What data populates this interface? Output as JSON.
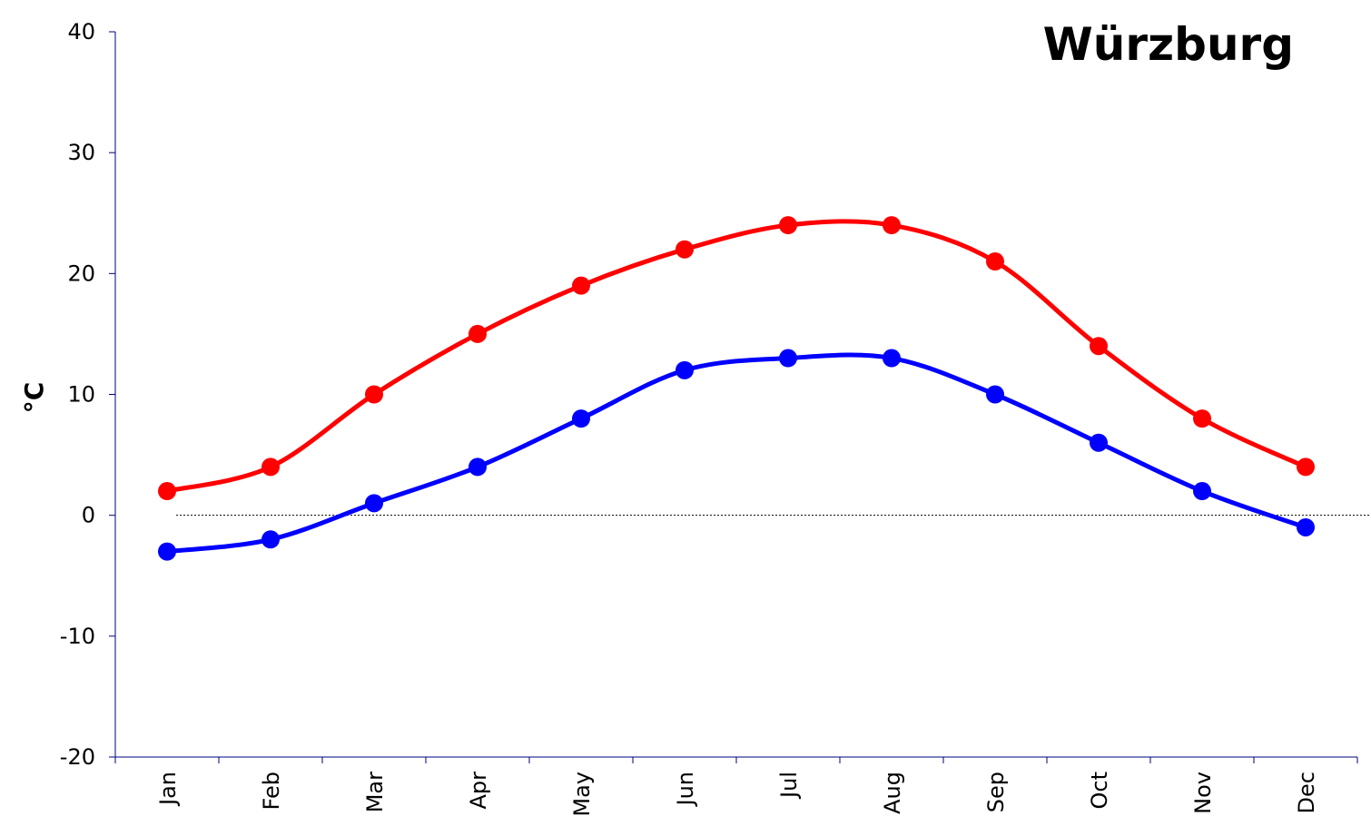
{
  "chart_data": {
    "type": "line",
    "title": "Würzburg",
    "xlabel": "",
    "ylabel": "°C",
    "categories": [
      "Jan",
      "Feb",
      "Mar",
      "Apr",
      "May",
      "Jun",
      "Jul",
      "Aug",
      "Sep",
      "Oct",
      "Nov",
      "Dec"
    ],
    "series": [
      {
        "values": [
          2,
          4,
          10,
          15,
          19,
          22,
          24,
          24,
          21,
          14,
          8,
          4
        ],
        "color": "#ff0000"
      },
      {
        "values": [
          -3,
          -2,
          1,
          4,
          8,
          12,
          13,
          13,
          10,
          6,
          2,
          -1
        ],
        "color": "#0000ff"
      }
    ],
    "ylim": [
      -20,
      40
    ],
    "yticks": [
      -20,
      -10,
      0,
      10,
      20,
      30,
      40
    ],
    "grid": false,
    "zero_line": "dotted",
    "smooth": true
  }
}
